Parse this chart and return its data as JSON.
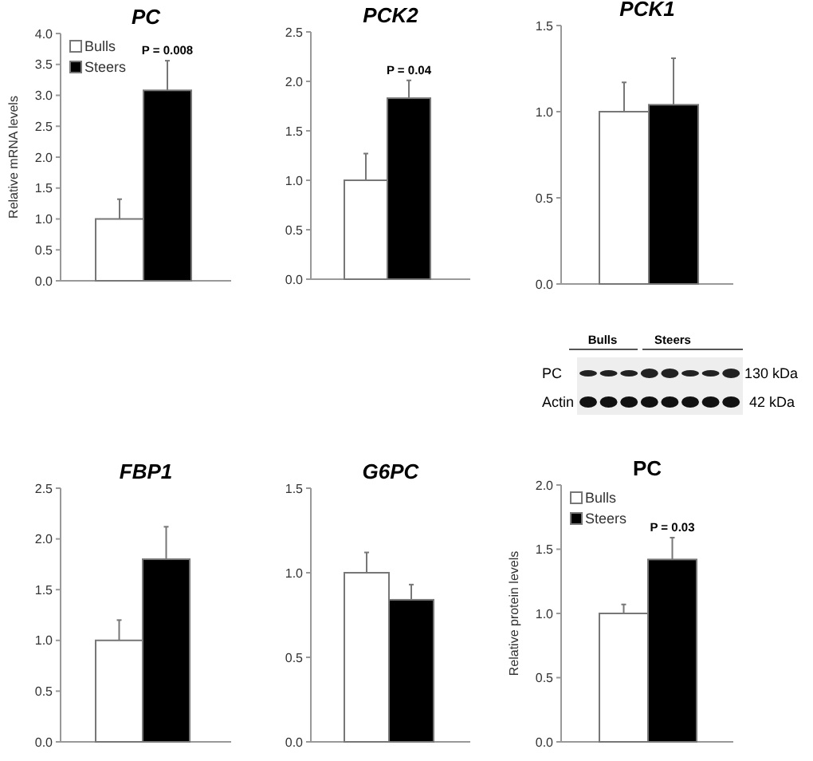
{
  "chart_data": [
    {
      "type": "bar",
      "title": "PC",
      "ylabel": "Relative mRNA levels",
      "categories": [
        null
      ],
      "legend": "top left",
      "ylim": [
        0,
        4
      ],
      "yticks": [
        {
          "value": 0,
          "label": "0.0"
        },
        {
          "value": 0.5,
          "label": "0.5"
        },
        {
          "value": 1,
          "label": "1.0"
        },
        {
          "value": 1.5,
          "label": "1.5"
        },
        {
          "value": 2,
          "label": "2.0"
        },
        {
          "value": 2.5,
          "label": "2.5"
        },
        {
          "value": 3,
          "label": "3.0"
        },
        {
          "value": 3.5,
          "label": "3.5"
        },
        {
          "value": 4,
          "label": "4.0"
        }
      ],
      "annotations": [
        "P = 0.008"
      ],
      "series": [
        {
          "name": "Bulls",
          "color": "#ffffff",
          "values": [
            1.0
          ],
          "errors": [
            [
              1.0,
              1.32
            ]
          ]
        },
        {
          "name": "Steers",
          "color": "#000000",
          "values": [
            3.08
          ],
          "errors": [
            [
              3.08,
              3.56
            ]
          ]
        }
      ]
    },
    {
      "type": "bar",
      "title": "PCK2",
      "categories": [
        null
      ],
      "ylim": [
        0,
        2.5
      ],
      "yticks": [
        {
          "value": 0,
          "label": "0.0"
        },
        {
          "value": 0.5,
          "label": "0.5"
        },
        {
          "value": 1,
          "label": "1.0"
        },
        {
          "value": 1.5,
          "label": "1.5"
        },
        {
          "value": 2,
          "label": "2.0"
        },
        {
          "value": 2.5,
          "label": "2.5"
        }
      ],
      "annotations": [
        "P = 0.04"
      ],
      "series": [
        {
          "color": "#ffffff",
          "values": [
            1.0
          ],
          "errors": [
            [
              1.0,
              1.27
            ]
          ]
        },
        {
          "color": "#000000",
          "values": [
            1.83
          ],
          "errors": [
            [
              1.83,
              2.01
            ]
          ]
        }
      ]
    },
    {
      "type": "bar",
      "title": "PCK1",
      "categories": [
        null
      ],
      "ylim": [
        0,
        1.5
      ],
      "yticks": [
        {
          "value": 0,
          "label": "0.0"
        },
        {
          "value": 0.5,
          "label": "0.5"
        },
        {
          "value": 1,
          "label": "1.0"
        },
        {
          "value": 1.5,
          "label": "1.5"
        }
      ],
      "series": [
        {
          "color": "#ffffff",
          "values": [
            1.0
          ],
          "errors": [
            [
              1.0,
              1.17
            ]
          ]
        },
        {
          "color": "#000000",
          "values": [
            1.04
          ],
          "errors": [
            [
              1.04,
              1.31
            ]
          ]
        }
      ]
    },
    {
      "type": "other",
      "annotations": [
        "Bulls",
        "Steers",
        "PC",
        "Actin",
        "130 kDa",
        "42 kDa"
      ]
    },
    {
      "type": "bar",
      "title": "FBP1",
      "categories": [
        null
      ],
      "ylim": [
        0,
        2.5
      ],
      "yticks": [
        {
          "value": 0,
          "label": "0.0"
        },
        {
          "value": 0.5,
          "label": "0.5"
        },
        {
          "value": 1,
          "label": "1.0"
        },
        {
          "value": 1.5,
          "label": "1.5"
        },
        {
          "value": 2,
          "label": "2.0"
        },
        {
          "value": 2.5,
          "label": "2.5"
        }
      ],
      "series": [
        {
          "color": "#ffffff",
          "values": [
            1.0
          ],
          "errors": [
            [
              1.0,
              1.2
            ]
          ]
        },
        {
          "color": "#000000",
          "values": [
            1.8
          ],
          "errors": [
            [
              1.8,
              2.12
            ]
          ]
        }
      ]
    },
    {
      "type": "bar",
      "title": "G6PC",
      "categories": [
        null
      ],
      "ylim": [
        0,
        1.5
      ],
      "yticks": [
        {
          "value": 0,
          "label": "0.0"
        },
        {
          "value": 0.5,
          "label": "0.5"
        },
        {
          "value": 1,
          "label": "1.0"
        },
        {
          "value": 1.5,
          "label": "1.5"
        }
      ],
      "series": [
        {
          "color": "#ffffff",
          "values": [
            1.0
          ],
          "errors": [
            [
              1.0,
              1.12
            ]
          ]
        },
        {
          "color": "#000000",
          "values": [
            0.84
          ],
          "errors": [
            [
              0.84,
              0.93
            ]
          ]
        }
      ]
    },
    {
      "type": "bar",
      "title": "PC",
      "ylabel": "Relative protein levels",
      "categories": [
        null
      ],
      "legend": "top left",
      "ylim": [
        0,
        2
      ],
      "yticks": [
        {
          "value": 0,
          "label": "0.0"
        },
        {
          "value": 0.5,
          "label": "0.5"
        },
        {
          "value": 1,
          "label": "1.0"
        },
        {
          "value": 1.5,
          "label": "1.5"
        },
        {
          "value": 2,
          "label": "2.0"
        }
      ],
      "annotations": [
        "P = 0.03"
      ],
      "series": [
        {
          "name": "Bulls",
          "color": "#ffffff",
          "values": [
            1.0
          ],
          "errors": [
            [
              1.0,
              1.07
            ]
          ]
        },
        {
          "name": "Steers",
          "color": "#000000",
          "values": [
            1.42
          ],
          "errors": [
            [
              1.42,
              1.59
            ]
          ]
        }
      ]
    }
  ]
}
